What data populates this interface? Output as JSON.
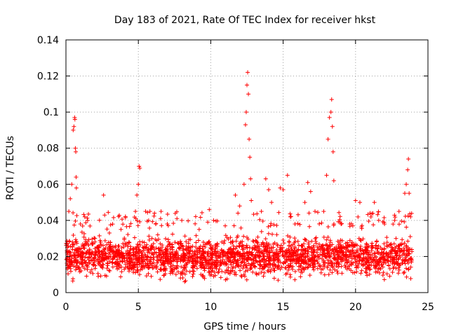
{
  "chart_data": {
    "type": "scatter",
    "title": "Day 183 of 2021, Rate Of TEC Index for receiver hkst",
    "xlabel": "GPS time / hours",
    "ylabel": "ROTI / TECUs",
    "xlim": [
      0,
      25
    ],
    "ylim": [
      0,
      0.14
    ],
    "xticks": [
      0,
      5,
      10,
      15,
      20,
      25
    ],
    "xtick_labels": [
      "0",
      "5",
      "10",
      "15",
      "20",
      "25"
    ],
    "yticks": [
      0,
      0.02,
      0.04,
      0.06,
      0.08,
      0.1,
      0.12,
      0.14
    ],
    "ytick_labels": [
      "0",
      "0.02",
      "0.04",
      "0.06",
      "0.08",
      "0.1",
      "0.12",
      "0.14"
    ],
    "grid": true,
    "marker": "+",
    "color": "#ff0000",
    "series": [
      {
        "name": "ROTI",
        "band": {
          "x_range": [
            0,
            23.9
          ],
          "typical_range": [
            0.005,
            0.035
          ]
        },
        "points": [
          [
            0.1,
            0.025
          ],
          [
            0.2,
            0.045
          ],
          [
            0.3,
            0.052
          ],
          [
            0.4,
            0.06
          ],
          [
            0.5,
            0.09
          ],
          [
            0.55,
            0.092
          ],
          [
            0.6,
            0.097
          ],
          [
            0.62,
            0.096
          ],
          [
            0.65,
            0.08
          ],
          [
            0.68,
            0.078
          ],
          [
            0.7,
            0.064
          ],
          [
            0.72,
            0.058
          ],
          [
            1.0,
            0.038
          ],
          [
            1.3,
            0.042
          ],
          [
            1.5,
            0.04
          ],
          [
            2.0,
            0.03
          ],
          [
            2.6,
            0.054
          ],
          [
            3.0,
            0.033
          ],
          [
            3.8,
            0.035
          ],
          [
            4.8,
            0.045
          ],
          [
            4.9,
            0.054
          ],
          [
            5.0,
            0.06
          ],
          [
            5.05,
            0.07
          ],
          [
            5.1,
            0.069
          ],
          [
            5.5,
            0.045
          ],
          [
            5.8,
            0.045
          ],
          [
            6.2,
            0.038
          ],
          [
            7.0,
            0.038
          ],
          [
            8.0,
            0.04
          ],
          [
            9.2,
            0.035
          ],
          [
            9.9,
            0.046
          ],
          [
            10.2,
            0.04
          ],
          [
            11.0,
            0.037
          ],
          [
            11.7,
            0.054
          ],
          [
            12.0,
            0.048
          ],
          [
            12.3,
            0.06
          ],
          [
            12.4,
            0.093
          ],
          [
            12.45,
            0.1
          ],
          [
            12.5,
            0.115
          ],
          [
            12.55,
            0.122
          ],
          [
            12.6,
            0.11
          ],
          [
            12.65,
            0.085
          ],
          [
            12.7,
            0.075
          ],
          [
            12.75,
            0.063
          ],
          [
            12.8,
            0.051
          ],
          [
            13.5,
            0.045
          ],
          [
            13.8,
            0.063
          ],
          [
            14.0,
            0.057
          ],
          [
            14.2,
            0.05
          ],
          [
            14.8,
            0.058
          ],
          [
            15.0,
            0.057
          ],
          [
            15.3,
            0.065
          ],
          [
            15.5,
            0.042
          ],
          [
            16.5,
            0.05
          ],
          [
            16.7,
            0.061
          ],
          [
            16.9,
            0.056
          ],
          [
            17.2,
            0.045
          ],
          [
            17.8,
            0.045
          ],
          [
            18.0,
            0.065
          ],
          [
            18.1,
            0.085
          ],
          [
            18.2,
            0.097
          ],
          [
            18.3,
            0.1
          ],
          [
            18.35,
            0.107
          ],
          [
            18.4,
            0.092
          ],
          [
            18.45,
            0.078
          ],
          [
            18.5,
            0.062
          ],
          [
            19.0,
            0.038
          ],
          [
            19.6,
            0.038
          ],
          [
            20.0,
            0.051
          ],
          [
            20.3,
            0.05
          ],
          [
            21.0,
            0.044
          ],
          [
            21.3,
            0.05
          ],
          [
            21.6,
            0.04
          ],
          [
            22.0,
            0.038
          ],
          [
            22.7,
            0.04
          ],
          [
            23.0,
            0.045
          ],
          [
            23.4,
            0.055
          ],
          [
            23.5,
            0.06
          ],
          [
            23.6,
            0.068
          ],
          [
            23.65,
            0.074
          ],
          [
            23.7,
            0.055
          ],
          [
            23.8,
            0.042
          ]
        ]
      }
    ]
  }
}
